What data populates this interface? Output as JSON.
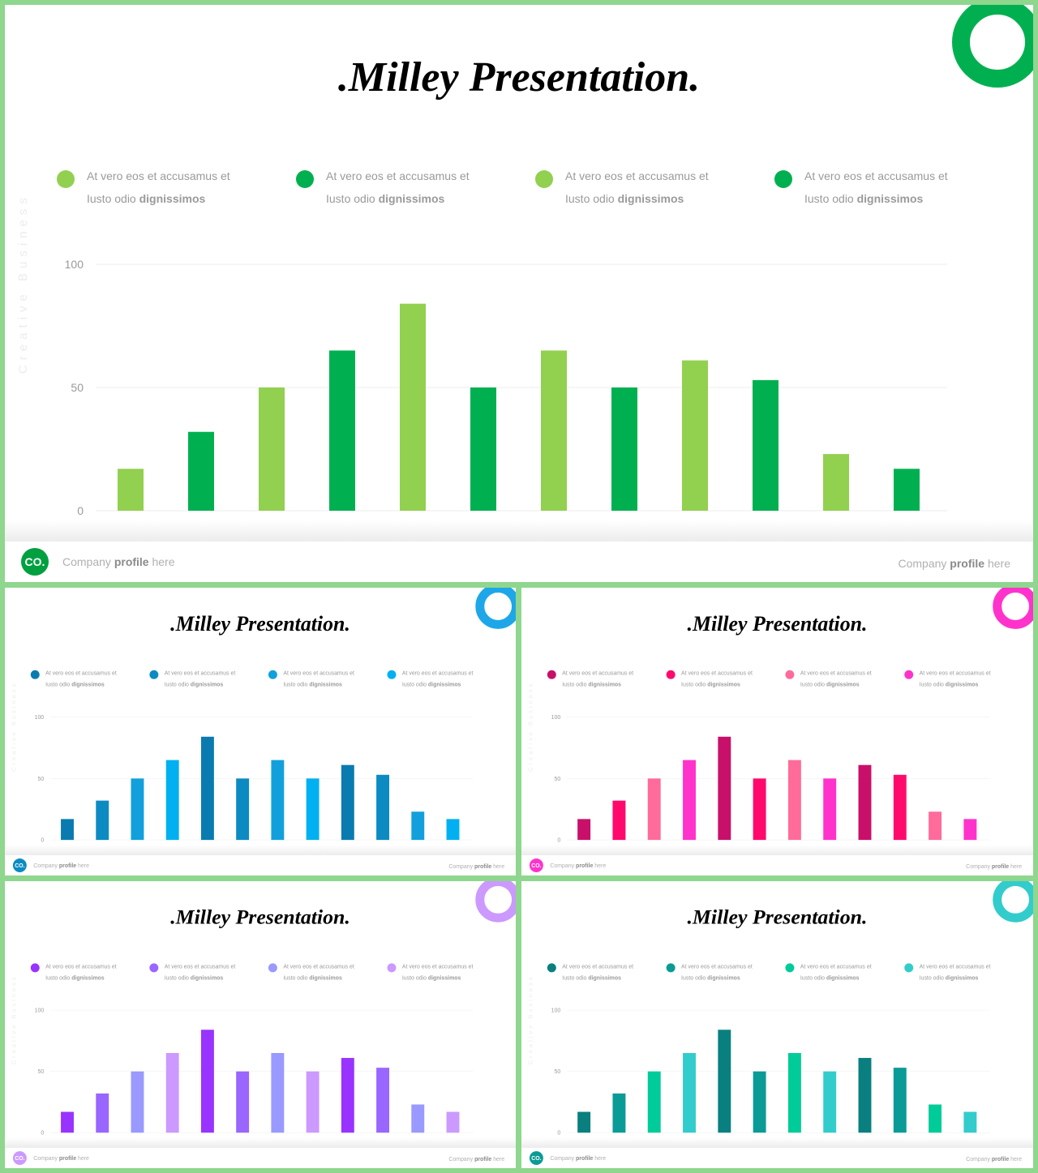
{
  "chart_data": [
    {
      "type": "bar",
      "title": ".Milley Presentation.",
      "side_text": "Creative Business",
      "legend": [
        {
          "text": "At vero eos et accusamus et",
          "text2": "Iusto odio",
          "bold": "dignissimos",
          "color": "#92d050"
        },
        {
          "text": "At vero eos et accusamus et",
          "text2": "Iusto odio",
          "bold": "dignissimos",
          "color": "#00b050"
        },
        {
          "text": "At vero eos et accusamus et",
          "text2": "Iusto odio",
          "bold": "dignissimos",
          "color": "#92d050"
        },
        {
          "text": "At vero eos et accusamus et",
          "text2": "Iusto odio",
          "bold": "dignissimos",
          "color": "#00b050"
        }
      ],
      "values": [
        17,
        32,
        50,
        65,
        84,
        50,
        65,
        50,
        61,
        53,
        23,
        17
      ],
      "colors": [
        "#92d050",
        "#00b050",
        "#92d050",
        "#00b050",
        "#92d050",
        "#00b050",
        "#92d050",
        "#00b050",
        "#92d050",
        "#00b050",
        "#92d050",
        "#00b050"
      ],
      "ylim": [
        0,
        100
      ],
      "yticks": [
        0,
        50,
        100
      ],
      "ring_color": "#00b050",
      "logo": "CO.",
      "logo_color": "#00a040",
      "footer_left": [
        "Company",
        "profile",
        "here"
      ],
      "footer_right": [
        "Company",
        "profile",
        "here"
      ]
    },
    {
      "type": "bar",
      "title": ".Milley Presentation.",
      "side_text": "Creative Business",
      "legend": [
        {
          "text": "At vero eos et accusamus et",
          "text2": "Iusto odio",
          "bold": "dignissimos",
          "color": "#0a7bb0"
        },
        {
          "text": "At vero eos et accusamus et",
          "text2": "Iusto odio",
          "bold": "dignissimos",
          "color": "#0b8bc2"
        },
        {
          "text": "At vero eos et accusamus et",
          "text2": "Iusto odio",
          "bold": "dignissimos",
          "color": "#12a0dc"
        },
        {
          "text": "At vero eos et accusamus et",
          "text2": "Iusto odio",
          "bold": "dignissimos",
          "color": "#00b0f0"
        }
      ],
      "values": [
        17,
        32,
        50,
        65,
        84,
        50,
        65,
        50,
        61,
        53,
        23,
        17
      ],
      "colors": [
        "#0a7bb0",
        "#0b8bc2",
        "#12a0dc",
        "#00b0f0",
        "#0a7bb0",
        "#0b8bc2",
        "#12a0dc",
        "#00b0f0",
        "#0a7bb0",
        "#0b8bc2",
        "#12a0dc",
        "#00b0f0"
      ],
      "ylim": [
        0,
        100
      ],
      "yticks": [
        0,
        50,
        100
      ],
      "ring_color": "#1ea7e8",
      "logo": "CO.",
      "logo_color": "#0b8bc2",
      "footer_left": [
        "Company",
        "profile",
        "here"
      ],
      "footer_right": [
        "Company",
        "profile",
        "here"
      ]
    },
    {
      "type": "bar",
      "title": ".Milley Presentation.",
      "side_text": "Creative Business",
      "legend": [
        {
          "text": "At vero eos et accusamus et",
          "text2": "Iusto odio",
          "bold": "dignissimos",
          "color": "#c8106a"
        },
        {
          "text": "At vero eos et accusamus et",
          "text2": "Iusto odio",
          "bold": "dignissimos",
          "color": "#ff0a6c"
        },
        {
          "text": "At vero eos et accusamus et",
          "text2": "Iusto odio",
          "bold": "dignissimos",
          "color": "#ff6b9a"
        },
        {
          "text": "At vero eos et accusamus et",
          "text2": "Iusto odio",
          "bold": "dignissimos",
          "color": "#ff33cc"
        }
      ],
      "values": [
        17,
        32,
        50,
        65,
        84,
        50,
        65,
        50,
        61,
        53,
        23,
        17
      ],
      "colors": [
        "#c8106a",
        "#ff0a6c",
        "#ff6b9a",
        "#ff33cc",
        "#c8106a",
        "#ff0a6c",
        "#ff6b9a",
        "#ff33cc",
        "#c8106a",
        "#ff0a6c",
        "#ff6b9a",
        "#ff33cc"
      ],
      "ylim": [
        0,
        100
      ],
      "yticks": [
        0,
        50,
        100
      ],
      "ring_color": "#ff33cc",
      "logo": "CO.",
      "logo_color": "#ff33cc",
      "footer_left": [
        "Company",
        "profile",
        "here"
      ],
      "footer_right": [
        "Company",
        "profile",
        "here"
      ]
    },
    {
      "type": "bar",
      "title": ".Milley Presentation.",
      "side_text": "Creative Business",
      "legend": [
        {
          "text": "At vero eos et accusamus et",
          "text2": "Iusto odio",
          "bold": "dignissimos",
          "color": "#9933ff"
        },
        {
          "text": "At vero eos et accusamus et",
          "text2": "Iusto odio",
          "bold": "dignissimos",
          "color": "#9966ff"
        },
        {
          "text": "At vero eos et accusamus et",
          "text2": "Iusto odio",
          "bold": "dignissimos",
          "color": "#9999ff"
        },
        {
          "text": "At vero eos et accusamus et",
          "text2": "Iusto odio",
          "bold": "dignissimos",
          "color": "#cc99ff"
        }
      ],
      "values": [
        17,
        32,
        50,
        65,
        84,
        50,
        65,
        50,
        61,
        53,
        23,
        17
      ],
      "colors": [
        "#9933ff",
        "#9966ff",
        "#9999ff",
        "#cc99ff",
        "#9933ff",
        "#9966ff",
        "#9999ff",
        "#cc99ff",
        "#9933ff",
        "#9966ff",
        "#9999ff",
        "#cc99ff"
      ],
      "ylim": [
        0,
        100
      ],
      "yticks": [
        0,
        50,
        100
      ],
      "ring_color": "#cc99ff",
      "logo": "CO.",
      "logo_color": "#cc99ff",
      "footer_left": [
        "Company",
        "profile",
        "here"
      ],
      "footer_right": [
        "Company",
        "profile",
        "here"
      ]
    },
    {
      "type": "bar",
      "title": ".Milley Presentation.",
      "side_text": "Creative Business",
      "legend": [
        {
          "text": "At vero eos et accusamus et",
          "text2": "Iusto odio",
          "bold": "dignissimos",
          "color": "#0a7f7f"
        },
        {
          "text": "At vero eos et accusamus et",
          "text2": "Iusto odio",
          "bold": "dignissimos",
          "color": "#0a9b96"
        },
        {
          "text": "At vero eos et accusamus et",
          "text2": "Iusto odio",
          "bold": "dignissimos",
          "color": "#00cc99"
        },
        {
          "text": "At vero eos et accusamus et",
          "text2": "Iusto odio",
          "bold": "dignissimos",
          "color": "#33cccc"
        }
      ],
      "values": [
        17,
        32,
        50,
        65,
        84,
        50,
        65,
        50,
        61,
        53,
        23,
        17
      ],
      "colors": [
        "#0a7f7f",
        "#0a9b96",
        "#00cc99",
        "#33cccc",
        "#0a7f7f",
        "#0a9b96",
        "#00cc99",
        "#33cccc",
        "#0a7f7f",
        "#0a9b96",
        "#00cc99",
        "#33cccc"
      ],
      "ylim": [
        0,
        100
      ],
      "yticks": [
        0,
        50,
        100
      ],
      "ring_color": "#33cccc",
      "logo": "CO.",
      "logo_color": "#0a9b96",
      "footer_left": [
        "Company",
        "profile",
        "here"
      ],
      "footer_right": [
        "Company",
        "profile",
        "here"
      ]
    }
  ]
}
